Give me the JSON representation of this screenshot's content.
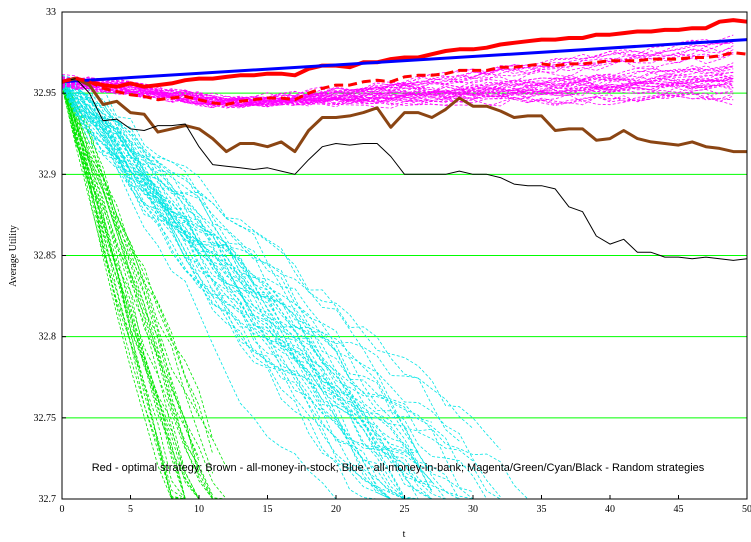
{
  "chart_data": {
    "type": "line",
    "title": "",
    "xlabel": "t",
    "ylabel": "Average Utility",
    "xlim": [
      0,
      50
    ],
    "ylim": [
      32.7,
      33.0
    ],
    "x_ticks": [
      0,
      5,
      10,
      15,
      20,
      25,
      30,
      35,
      40,
      45,
      50
    ],
    "y_ticks": [
      32.7,
      32.75,
      32.8,
      32.85,
      32.9,
      32.95,
      33
    ],
    "y_tick_labels": [
      "32.7",
      "32.75",
      "32.8",
      "32.85",
      "32.9",
      "32.95",
      "33"
    ],
    "grid": "horizontal",
    "grid_color": "#00ff00",
    "annotation": "Red - optimal strategy; Brown - all-money-in-stock; Blue - all-money-in-bank; Magenta/Green/Cyan/Black - Random strategies",
    "series": [
      {
        "color": "#ff0000",
        "style": "solid",
        "width": 4,
        "x": [
          0,
          1,
          2,
          3,
          4,
          5,
          6,
          7,
          8,
          9,
          10,
          11,
          12,
          13,
          14,
          15,
          16,
          17,
          18,
          19,
          20,
          21,
          22,
          23,
          24,
          25,
          26,
          27,
          28,
          29,
          30,
          31,
          32,
          33,
          34,
          35,
          36,
          37,
          38,
          39,
          40,
          41,
          42,
          43,
          44,
          45,
          46,
          47,
          48,
          49,
          50
        ],
        "y": [
          32.957,
          32.959,
          32.957,
          32.955,
          32.954,
          32.956,
          32.954,
          32.955,
          32.956,
          32.958,
          32.959,
          32.959,
          32.96,
          32.961,
          32.961,
          32.962,
          32.962,
          32.961,
          32.965,
          32.967,
          32.967,
          32.966,
          32.969,
          32.969,
          32.971,
          32.972,
          32.972,
          32.974,
          32.976,
          32.977,
          32.977,
          32.978,
          32.98,
          32.981,
          32.982,
          32.983,
          32.983,
          32.984,
          32.984,
          32.986,
          32.986,
          32.987,
          32.988,
          32.988,
          32.989,
          32.989,
          32.99,
          32.99,
          32.994,
          32.995,
          32.994
        ]
      },
      {
        "color": "#0000ff",
        "style": "solid",
        "width": 3,
        "x": [
          0,
          50
        ],
        "y": [
          32.957,
          32.983
        ]
      },
      {
        "color": "#8b4513",
        "style": "solid",
        "width": 3,
        "x": [
          0,
          1,
          2,
          3,
          4,
          5,
          6,
          7,
          8,
          9,
          10,
          11,
          12,
          13,
          14,
          15,
          16,
          17,
          18,
          19,
          20,
          21,
          22,
          23,
          24,
          25,
          26,
          27,
          28,
          29,
          30,
          31,
          32,
          33,
          34,
          35,
          36,
          37,
          38,
          39,
          40,
          41,
          42,
          43,
          44,
          45,
          46,
          47,
          48,
          49,
          50
        ],
        "y": [
          32.957,
          32.959,
          32.955,
          32.943,
          32.945,
          32.938,
          32.937,
          32.926,
          32.928,
          32.93,
          32.928,
          32.922,
          32.914,
          32.919,
          32.919,
          32.917,
          32.92,
          32.914,
          32.927,
          32.935,
          32.935,
          32.936,
          32.938,
          32.941,
          32.929,
          32.938,
          32.938,
          32.935,
          32.94,
          32.947,
          32.942,
          32.942,
          32.939,
          32.935,
          32.936,
          32.936,
          32.927,
          32.928,
          32.928,
          32.921,
          32.922,
          32.927,
          32.922,
          32.92,
          32.919,
          32.918,
          32.92,
          32.917,
          32.916,
          32.914,
          32.914
        ]
      },
      {
        "color": "#000000",
        "style": "solid",
        "width": 1,
        "x": [
          0,
          1,
          2,
          3,
          4,
          5,
          6,
          7,
          8,
          9,
          10,
          11,
          12,
          13,
          14,
          15,
          16,
          17,
          18,
          19,
          20,
          21,
          22,
          23,
          24,
          25,
          26,
          27,
          28,
          29,
          30,
          31,
          32,
          33,
          34,
          35,
          36,
          37,
          38,
          39,
          40,
          41,
          42,
          43,
          44,
          45,
          46,
          47,
          48,
          49,
          50
        ],
        "y": [
          32.957,
          32.959,
          32.95,
          32.933,
          32.934,
          32.928,
          32.927,
          32.93,
          32.93,
          32.931,
          32.917,
          32.906,
          32.905,
          32.904,
          32.903,
          32.904,
          32.902,
          32.9,
          32.909,
          32.917,
          32.919,
          32.918,
          32.919,
          32.919,
          32.911,
          32.9,
          32.9,
          32.9,
          32.9,
          32.902,
          32.9,
          32.9,
          32.898,
          32.894,
          32.893,
          32.893,
          32.891,
          32.88,
          32.877,
          32.862,
          32.857,
          32.86,
          32.852,
          32.852,
          32.849,
          32.849,
          32.848,
          32.849,
          32.848,
          32.847,
          32.848
        ]
      },
      {
        "color": "#ff0000",
        "style": "dashed",
        "width": 3,
        "x": [
          0,
          1,
          2,
          3,
          4,
          5,
          6,
          7,
          8,
          9,
          10,
          11,
          12,
          13,
          14,
          15,
          16,
          17,
          18,
          19,
          20,
          21,
          22,
          23,
          24,
          25,
          26,
          27,
          28,
          29,
          30,
          31,
          32,
          33,
          34,
          35,
          36,
          37,
          38,
          39,
          40,
          41,
          42,
          43,
          44,
          45,
          46,
          47,
          48,
          49,
          50
        ],
        "y": [
          32.957,
          32.959,
          32.957,
          32.953,
          32.951,
          32.949,
          32.948,
          32.946,
          32.947,
          32.948,
          32.946,
          32.944,
          32.943,
          32.945,
          32.946,
          32.947,
          32.947,
          32.946,
          32.95,
          32.953,
          32.955,
          32.955,
          32.957,
          32.958,
          32.957,
          32.96,
          32.961,
          32.961,
          32.962,
          32.964,
          32.964,
          32.964,
          32.966,
          32.966,
          32.967,
          32.968,
          32.967,
          32.968,
          32.968,
          32.969,
          32.97,
          32.97,
          32.97,
          32.971,
          32.971,
          32.971,
          32.972,
          32.972,
          32.973,
          32.975,
          32.974
        ]
      }
    ]
  }
}
